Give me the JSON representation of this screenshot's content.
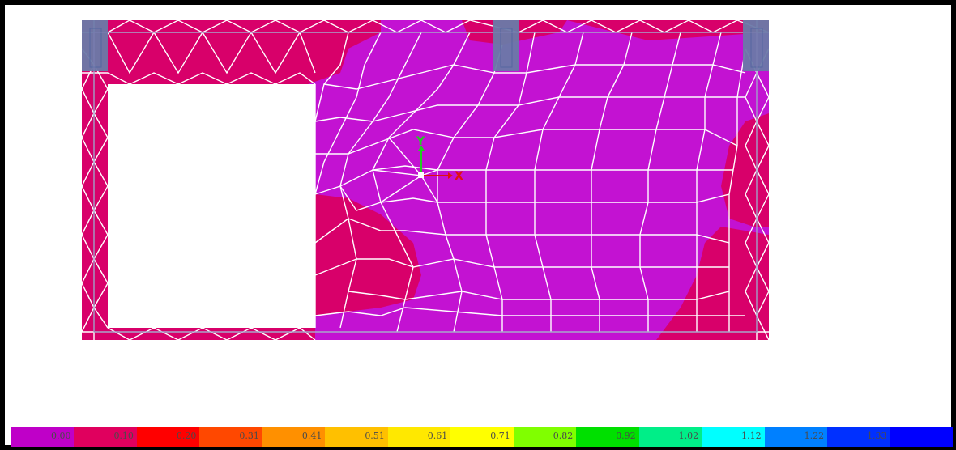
{
  "viewport": {
    "axis_labels": {
      "x": "X",
      "y": "Y"
    }
  },
  "legend": {
    "labels": [
      "0.00",
      "0.10",
      "0.20",
      "0.31",
      "0.41",
      "0.51",
      "0.61",
      "0.71",
      "0.82",
      "0.92",
      "1.02",
      "1.12",
      "1.22",
      "1.33"
    ],
    "colors": [
      "#bf00c8",
      "#e0005e",
      "#ff0000",
      "#ff4800",
      "#ff9000",
      "#ffc000",
      "#ffe800",
      "#ffff00",
      "#80ff00",
      "#00e000",
      "#00ee88",
      "#00ffff",
      "#0080ff",
      "#0030ff",
      "#0000ff"
    ]
  },
  "colors": {
    "mesh_magenta": "#c312d2",
    "mesh_crimson": "#d8006a",
    "support": "#6a7aa8",
    "mesh_line": "#ffffff"
  }
}
